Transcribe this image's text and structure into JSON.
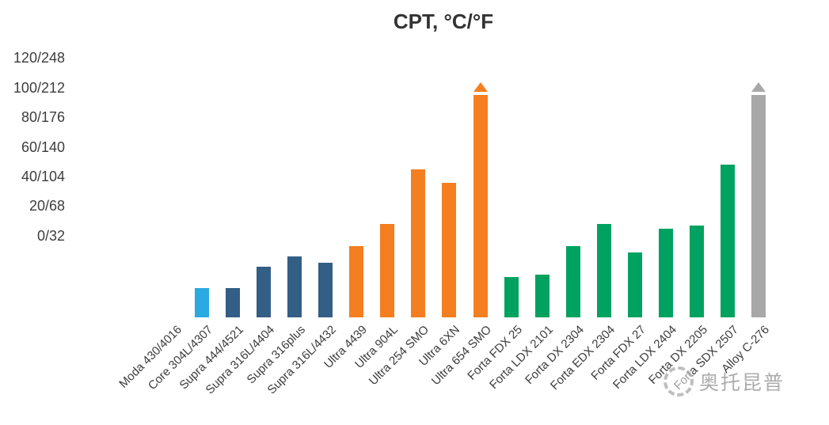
{
  "chart_data": {
    "type": "bar",
    "title": "CPT, °C/°F",
    "xlabel": "",
    "ylabel": "",
    "ylim": [
      -55,
      127
    ],
    "grid": false,
    "legend": null,
    "yticks": [
      {
        "value": 120,
        "label": "120/248"
      },
      {
        "value": 100,
        "label": "100/212"
      },
      {
        "value": 80,
        "label": "80/176"
      },
      {
        "value": 60,
        "label": "60/140"
      },
      {
        "value": 40,
        "label": "40/104"
      },
      {
        "value": 20,
        "label": "20/68"
      },
      {
        "value": 0,
        "label": "0/32"
      }
    ],
    "bars": [
      {
        "label": "Moda 430/4016",
        "value": null,
        "color": "#2BA9E1"
      },
      {
        "label": "Core 304L/4307",
        "value": -35,
        "color": "#2BA9E1"
      },
      {
        "label": "Supra 444/4521",
        "value": -35,
        "color": "#335E85"
      },
      {
        "label": "Supra 316L/4404",
        "value": -21,
        "color": "#335E85"
      },
      {
        "label": "Supra 316plus",
        "value": -14,
        "color": "#335E85"
      },
      {
        "label": "Supra 316L/4432",
        "value": -18,
        "color": "#335E85"
      },
      {
        "label": "Ultra 4439",
        "value": -7,
        "color": "#F57E20"
      },
      {
        "label": "Ultra 904L",
        "value": 8,
        "color": "#F57E20"
      },
      {
        "label": "Ultra 254 SMO",
        "value": 45,
        "color": "#F57E20"
      },
      {
        "label": "Ultra 6XN",
        "value": 36,
        "color": "#F57E20"
      },
      {
        "label": "Ultra 654 SMO",
        "value": 95,
        "color": "#F57E20",
        "overflow_arrow": true
      },
      {
        "label": "Forta FDX 25",
        "value": -28,
        "color": "#00A261"
      },
      {
        "label": "Forta LDX 2101",
        "value": -26,
        "color": "#00A261"
      },
      {
        "label": "Forta DX 2304",
        "value": -7,
        "color": "#00A261"
      },
      {
        "label": "Forta EDX 2304",
        "value": 8,
        "color": "#00A261"
      },
      {
        "label": "Forta FDX 27",
        "value": -11,
        "color": "#00A261"
      },
      {
        "label": "Forta LDX 2404",
        "value": 5,
        "color": "#00A261"
      },
      {
        "label": "Forta DX 2205",
        "value": 7,
        "color": "#00A261"
      },
      {
        "label": "Forta SDX 2507",
        "value": 48,
        "color": "#00A261"
      },
      {
        "label": "Alloy C-276",
        "value": 95,
        "color": "#A8A8A8",
        "overflow_arrow": true
      }
    ]
  },
  "watermark": {
    "text": "奥托昆普",
    "logo": "outokumpu-ring-logo"
  }
}
